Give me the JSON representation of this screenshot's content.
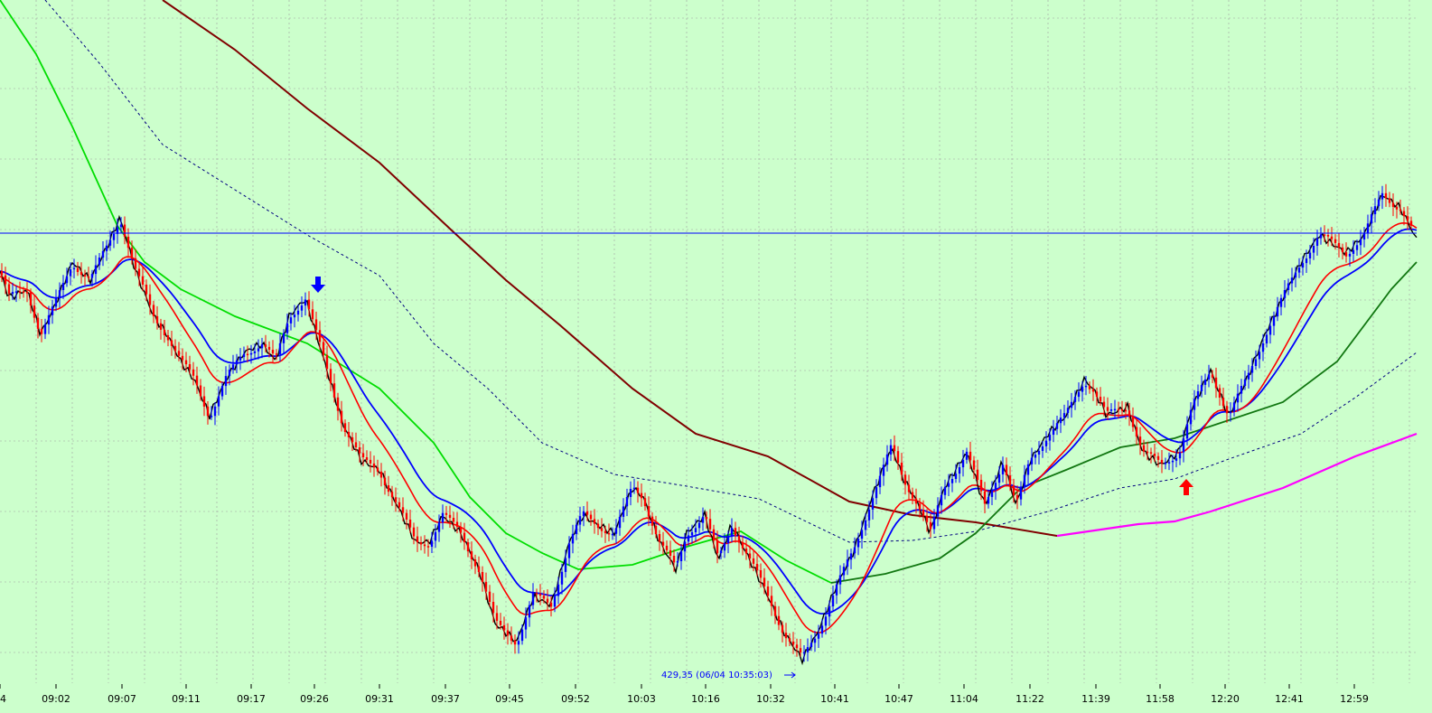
{
  "chart_data": {
    "type": "line",
    "title": "",
    "xlabel": "",
    "ylabel": "",
    "x_tick_labels": [
      "4",
      "09:02",
      "09:07",
      "09:11",
      "09:17",
      "09:26",
      "09:31",
      "09:37",
      "09:45",
      "09:52",
      "10:03",
      "10:16",
      "10:32",
      "10:41",
      "10:47",
      "11:04",
      "11:22",
      "11:39",
      "11:58",
      "12:20",
      "12:41",
      "12:59"
    ],
    "grid": true,
    "background_color": "#ccffcc",
    "grid_color": "#a0a0a0",
    "reference_line": {
      "color": "#0000ff"
    },
    "low_annotation": {
      "text": "429,35 (06/04 10:35:03)",
      "color": "#0000ff"
    },
    "signals": [
      {
        "type": "sell",
        "near": "09:26",
        "color": "#0000ff",
        "icon": "down-arrow-icon"
      },
      {
        "type": "buy",
        "near": "11:58",
        "color": "#ff0000",
        "icon": "up-arrow-icon"
      }
    ],
    "series": [
      {
        "type": "candlestick",
        "up_color": "#0000ff",
        "down_color": "#ff0000"
      },
      {
        "style": "solid",
        "color": "#000000"
      },
      {
        "style": "solid",
        "color": "#ff0000"
      },
      {
        "style": "solid",
        "color": "#0000ff"
      },
      {
        "style": "solid",
        "color": "#00dd00"
      },
      {
        "style": "dotted",
        "color": "#000080"
      },
      {
        "style": "solid",
        "color": "#800000"
      },
      {
        "style": "solid",
        "color": "#ff00ff"
      }
    ]
  }
}
